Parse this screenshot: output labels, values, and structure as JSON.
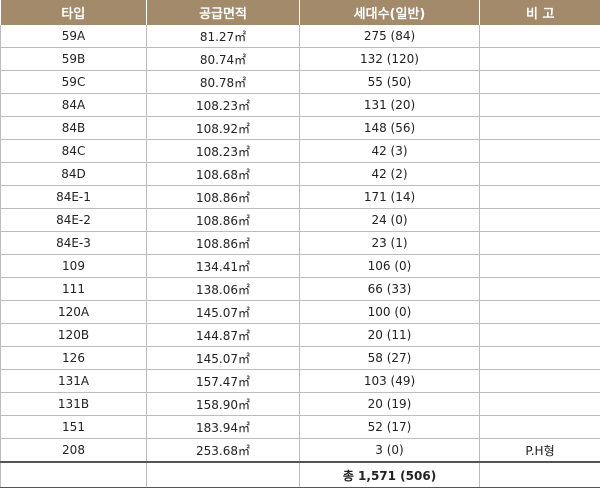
{
  "headers": [
    "타입",
    "공급면적",
    "세대수(일반)",
    "비 고"
  ],
  "rows": [
    {
      "type": "59A",
      "area": "81.27㎡",
      "units": "275 (84)",
      "note": ""
    },
    {
      "type": "59B",
      "area": "80.74㎡",
      "units": "132 (120)",
      "note": ""
    },
    {
      "type": "59C",
      "area": "80.78㎡",
      "units": "55 (50)",
      "note": ""
    },
    {
      "type": "84A",
      "area": "108.23㎡",
      "units": "131 (20)",
      "note": ""
    },
    {
      "type": "84B",
      "area": "108.92㎡",
      "units": "148 (56)",
      "note": ""
    },
    {
      "type": "84C",
      "area": "108.23㎡",
      "units": "42 (3)",
      "note": ""
    },
    {
      "type": "84D",
      "area": "108.68㎡",
      "units": "42 (2)",
      "note": ""
    },
    {
      "type": "84E-1",
      "area": "108.86㎡",
      "units": "171 (14)",
      "note": ""
    },
    {
      "type": "84E-2",
      "area": "108.86㎡",
      "units": "24 (0)",
      "note": ""
    },
    {
      "type": "84E-3",
      "area": "108.86㎡",
      "units": "23 (1)",
      "note": ""
    },
    {
      "type": "109",
      "area": "134.41㎡",
      "units": "106 (0)",
      "note": ""
    },
    {
      "type": "111",
      "area": "138.06㎡",
      "units": "66 (33)",
      "note": ""
    },
    {
      "type": "120A",
      "area": "145.07㎡",
      "units": "100 (0)",
      "note": ""
    },
    {
      "type": "120B",
      "area": "144.87㎡",
      "units": "20 (11)",
      "note": ""
    },
    {
      "type": "126",
      "area": "145.07㎡",
      "units": "58 (27)",
      "note": ""
    },
    {
      "type": "131A",
      "area": "157.47㎡",
      "units": "103 (49)",
      "note": ""
    },
    {
      "type": "131B",
      "area": "158.90㎡",
      "units": "20 (19)",
      "note": ""
    },
    {
      "type": "151",
      "area": "183.94㎡",
      "units": "52 (17)",
      "note": ""
    },
    {
      "type": "208",
      "area": "253.68㎡",
      "units": "3 (0)",
      "note": "P.H형"
    }
  ],
  "total": {
    "label": "총 1,571 (506)"
  },
  "colors": {
    "header_bg": "#a38a6b",
    "header_text": "#ffffff",
    "grid": "#bdbdbd"
  }
}
